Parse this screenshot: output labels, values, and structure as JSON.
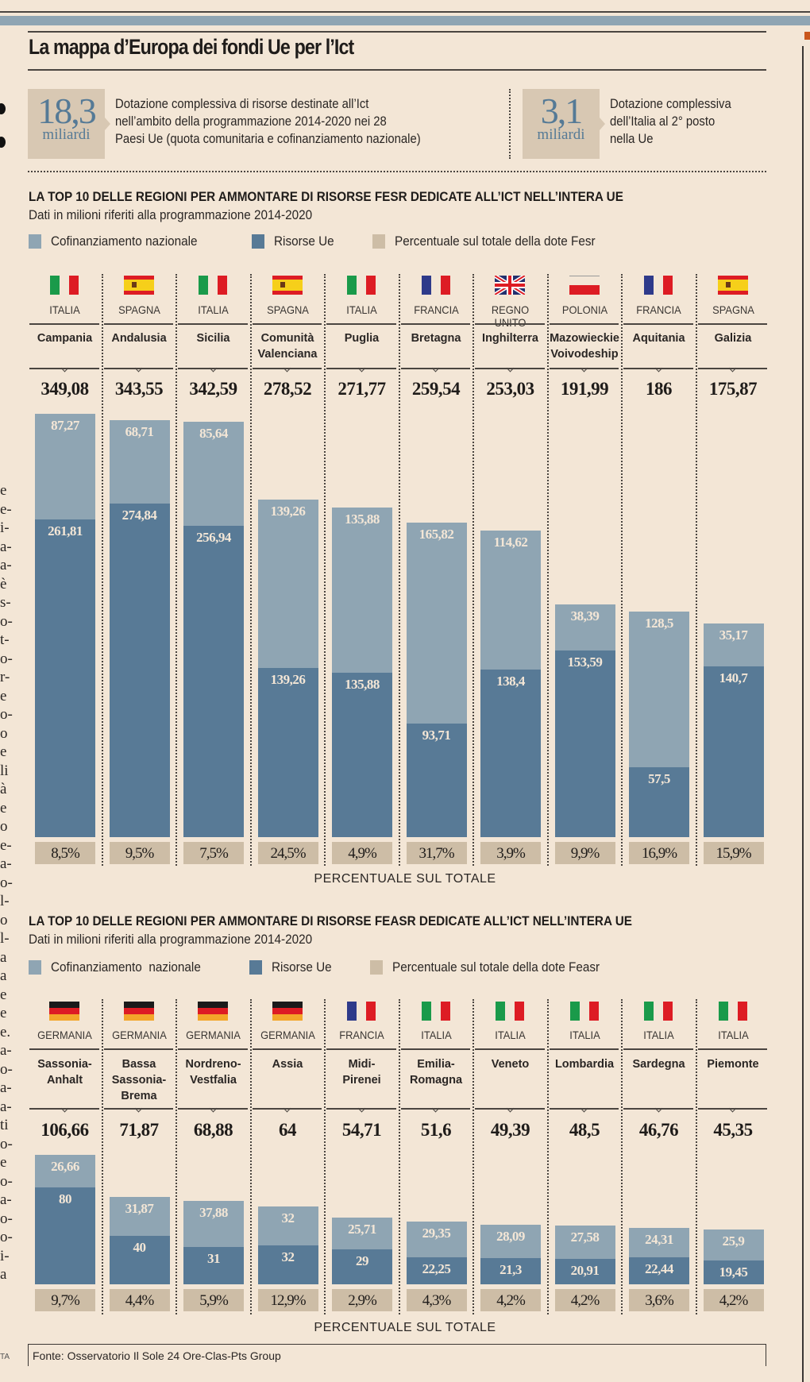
{
  "title": "La mappa d’Europa dei fondi Ue per l’Ict",
  "stats": [
    {
      "value": "18,3",
      "unit": "miliardi",
      "text_lines": [
        "Dotazione complessiva di risorse destinate all’Ict",
        "nell’ambito della programmazione 2014-2020 nei 28",
        "Paesi Ue (quota comunitaria e cofinanziamento nazionale)"
      ]
    },
    {
      "value": "3,1",
      "unit": "miliardi",
      "text_lines": [
        "Dotazione complessiva",
        "dell’Italia al 2° posto",
        "nella Ue"
      ]
    }
  ],
  "colors": {
    "cofinanziamento": "#8fa5b3",
    "risorse_ue": "#587a96",
    "percentuale": "#cdbda6",
    "background": "#f3e6d6"
  },
  "left_fragments": {
    "top": [
      "e",
      "e-",
      "i-",
      "a-",
      "a-",
      "è",
      "s-",
      "o-",
      "t-",
      "o-",
      "r-",
      "e",
      "o-",
      "o",
      "e",
      "li",
      "à",
      "e",
      "o",
      "e-",
      "a-",
      "o-",
      "l-",
      "o",
      "l-",
      "a",
      "a",
      "e",
      "e",
      "e.",
      "a-",
      "o-",
      "a-",
      "a-",
      "ti",
      "o-",
      "e",
      "o-",
      "a-",
      "o-",
      "o-",
      "i-",
      "a"
    ],
    "credit": "TA"
  },
  "source": "Fonte: Osservatorio Il Sole 24 Ore-Clas-Pts Group",
  "chart_data": [
    {
      "type": "bar",
      "stacked": true,
      "title": "LA TOP 10 DELLE REGIONI PER AMMONTARE DI RISORSE FESR DEDICATE ALL’ICT NELL’INTERA UE",
      "subtitle": "Dati in milioni riferiti alla programmazione 2014-2020",
      "legend": [
        "Cofinanziamento nazionale",
        "Risorse Ue",
        "Percentuale sul totale della dote Fesr"
      ],
      "legend_position": "top-left",
      "countries": [
        "ITALIA",
        "SPAGNA",
        "ITALIA",
        "SPAGNA",
        "ITALIA",
        "FRANCIA",
        "REGNO UNITO",
        "POLONIA",
        "FRANCIA",
        "SPAGNA"
      ],
      "flags": [
        "it",
        "es",
        "it",
        "es",
        "it",
        "fr",
        "uk",
        "pl",
        "fr",
        "es"
      ],
      "categories": [
        "Campania",
        "Andalusia",
        "Sicilia",
        "Comunità Valenciana",
        "Puglia",
        "Bretagna",
        "Inghilterra",
        "Mazowieckie Voivodeship",
        "Aquitania",
        "Galizia"
      ],
      "totals": [
        "349,08",
        "343,55",
        "342,59",
        "278,52",
        "271,77",
        "259,54",
        "253,03",
        "191,99",
        "186",
        "175,87"
      ],
      "series": [
        {
          "name": "Risorse Ue",
          "values": [
            261.81,
            274.84,
            256.94,
            139.26,
            135.88,
            93.71,
            138.4,
            153.59,
            57.5,
            140.7
          ],
          "labels": [
            "261,81",
            "274,84",
            "256,94",
            "139,26",
            "135,88",
            "93,71",
            "138,4",
            "153,59",
            "57,5",
            "140,7"
          ]
        },
        {
          "name": "Cofinanziamento nazionale",
          "values": [
            87.27,
            68.71,
            85.64,
            139.26,
            135.88,
            165.82,
            114.62,
            38.39,
            128.5,
            35.17
          ],
          "labels": [
            "87,27",
            "68,71",
            "85,64",
            "139,26",
            "135,88",
            "165,82",
            "114,62",
            "38,39",
            "128,5",
            "35,17"
          ]
        }
      ],
      "percentages": [
        "8,5%",
        "9,5%",
        "7,5%",
        "24,5%",
        "4,9%",
        "31,7%",
        "3,9%",
        "9,9%",
        "16,9%",
        "15,9%"
      ],
      "percent_caption": "PERCENTUALE SUL TOTALE",
      "ylim": [
        0,
        350
      ],
      "grid": false
    },
    {
      "type": "bar",
      "stacked": true,
      "title": "LA TOP 10 DELLE REGIONI PER AMMONTARE DI RISORSE FEASR DEDICATE ALL’ICT NELL’INTERA UE",
      "subtitle": "Dati in milioni riferiti alla programmazione 2014-2020",
      "legend": [
        "Cofinanziamento  nazionale",
        "Risorse Ue",
        "Percentuale sul totale della dote Feasr"
      ],
      "legend_position": "top-left",
      "countries": [
        "GERMANIA",
        "GERMANIA",
        "GERMANIA",
        "GERMANIA",
        "FRANCIA",
        "ITALIA",
        "ITALIA",
        "ITALIA",
        "ITALIA",
        "ITALIA"
      ],
      "flags": [
        "de",
        "de",
        "de",
        "de",
        "fr",
        "it",
        "it",
        "it",
        "it",
        "it"
      ],
      "categories": [
        "Sassonia- Anhalt",
        "Bassa Sassonia- Brema",
        "Nordreno- Vestfalia",
        "Assia",
        "Midi- Pirenei",
        "Emilia- Romagna",
        "Veneto",
        "Lombardia",
        "Sardegna",
        "Piemonte"
      ],
      "totals": [
        "106,66",
        "71,87",
        "68,88",
        "64",
        "54,71",
        "51,6",
        "49,39",
        "48,5",
        "46,76",
        "45,35"
      ],
      "series": [
        {
          "name": "Risorse Ue",
          "values": [
            80,
            40,
            31,
            32,
            29,
            22.25,
            21.3,
            20.91,
            22.44,
            19.45
          ],
          "labels": [
            "80",
            "40",
            "31",
            "32",
            "29",
            "22,25",
            "21,3",
            "20,91",
            "22,44",
            "19,45"
          ]
        },
        {
          "name": "Cofinanziamento nazionale",
          "values": [
            26.66,
            31.87,
            37.88,
            32,
            25.71,
            29.35,
            28.09,
            27.58,
            24.31,
            25.9
          ],
          "labels": [
            "26,66",
            "31,87",
            "37,88",
            "32",
            "25,71",
            "29,35",
            "28,09",
            "27,58",
            "24,31",
            "25,9"
          ]
        }
      ],
      "percentages": [
        "9,7%",
        "4,4%",
        "5,9%",
        "12,9%",
        "2,9%",
        "4,3%",
        "4,2%",
        "4,2%",
        "3,6%",
        "4,2%"
      ],
      "percent_caption": "PERCENTUALE SUL TOTALE",
      "ylim": [
        0,
        350
      ],
      "grid": false
    }
  ]
}
